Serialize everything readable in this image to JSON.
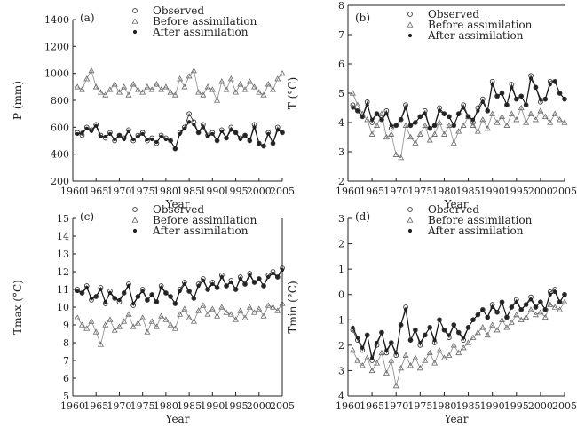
{
  "chart_data": [
    {
      "type": "line",
      "panel_label": "(a)",
      "xlabel": "Year",
      "ylabel": "P (mm)",
      "xlim": [
        1960,
        2005
      ],
      "ylim": [
        200,
        1400
      ],
      "xticks": [
        1960,
        1965,
        1970,
        1975,
        1980,
        1985,
        1990,
        1995,
        2000,
        2005
      ],
      "yticks": [
        200,
        400,
        600,
        800,
        1000,
        1200,
        1400
      ],
      "x": [
        1961,
        1962,
        1963,
        1964,
        1965,
        1966,
        1967,
        1968,
        1969,
        1970,
        1971,
        1972,
        1973,
        1974,
        1975,
        1976,
        1977,
        1978,
        1979,
        1980,
        1981,
        1982,
        1983,
        1984,
        1985,
        1986,
        1987,
        1988,
        1989,
        1990,
        1991,
        1992,
        1993,
        1994,
        1995,
        1996,
        1997,
        1998,
        1999,
        2000,
        2001,
        2002,
        2003,
        2004,
        2005
      ],
      "series": [
        {
          "name": "Observed",
          "marker": "circle",
          "values": [
            560,
            540,
            600,
            580,
            620,
            540,
            520,
            560,
            500,
            540,
            520,
            580,
            500,
            540,
            560,
            500,
            520,
            480,
            540,
            520,
            500,
            440,
            560,
            600,
            700,
            640,
            560,
            620,
            540,
            560,
            500,
            580,
            520,
            600,
            560,
            520,
            540,
            500,
            620,
            480,
            460,
            560,
            480,
            600,
            560
          ]
        },
        {
          "name": "Before assimilation",
          "marker": "triangle",
          "values": [
            900,
            880,
            960,
            1020,
            900,
            860,
            840,
            880,
            920,
            860,
            900,
            840,
            920,
            880,
            860,
            900,
            880,
            920,
            880,
            900,
            860,
            840,
            960,
            900,
            980,
            1020,
            860,
            840,
            900,
            880,
            800,
            940,
            880,
            960,
            860,
            920,
            880,
            940,
            900,
            860,
            840,
            920,
            880,
            960,
            1000
          ]
        },
        {
          "name": "After assimilation",
          "marker": "star",
          "values": [
            550,
            560,
            590,
            570,
            610,
            530,
            530,
            550,
            510,
            540,
            510,
            570,
            510,
            530,
            550,
            510,
            510,
            490,
            530,
            510,
            500,
            440,
            550,
            590,
            640,
            620,
            560,
            600,
            530,
            550,
            500,
            570,
            520,
            580,
            560,
            510,
            540,
            500,
            600,
            480,
            460,
            550,
            480,
            580,
            560
          ]
        }
      ]
    },
    {
      "type": "line",
      "panel_label": "(b)",
      "xlabel": "Year",
      "ylabel": "T (°C)",
      "xlim": [
        1960,
        2005
      ],
      "ylim": [
        2,
        8
      ],
      "xticks": [
        1960,
        1965,
        1970,
        1975,
        1980,
        1985,
        1990,
        1995,
        2000,
        2005
      ],
      "yticks": [
        2,
        3,
        4,
        5,
        6,
        7,
        8
      ],
      "x": [
        1961,
        1962,
        1963,
        1964,
        1965,
        1966,
        1967,
        1968,
        1969,
        1970,
        1971,
        1972,
        1973,
        1974,
        1975,
        1976,
        1977,
        1978,
        1979,
        1980,
        1981,
        1982,
        1983,
        1984,
        1985,
        1986,
        1987,
        1988,
        1989,
        1990,
        1991,
        1992,
        1993,
        1994,
        1995,
        1996,
        1997,
        1998,
        1999,
        2000,
        2001,
        2002,
        2003,
        2004,
        2005
      ],
      "series": [
        {
          "name": "Observed",
          "marker": "circle",
          "values": [
            4.6,
            4.4,
            4.2,
            4.7,
            4.0,
            4.3,
            4.1,
            4.4,
            3.8,
            3.9,
            4.1,
            4.6,
            3.9,
            4.0,
            4.2,
            4.4,
            3.8,
            3.9,
            4.5,
            4.3,
            4.2,
            3.9,
            4.3,
            4.6,
            4.2,
            4.0,
            4.5,
            4.8,
            4.4,
            5.4,
            4.9,
            5.0,
            4.6,
            5.3,
            4.8,
            4.9,
            4.6,
            5.6,
            5.2,
            4.7,
            4.8,
            5.4,
            5.4,
            5.0,
            4.8
          ]
        },
        {
          "name": "Before assimilation",
          "marker": "triangle",
          "values": [
            5.0,
            4.6,
            4.3,
            4.1,
            3.6,
            3.9,
            4.3,
            3.5,
            3.6,
            2.9,
            2.8,
            3.9,
            3.5,
            3.3,
            3.6,
            3.9,
            3.4,
            3.6,
            4.0,
            3.6,
            3.9,
            3.3,
            3.7,
            3.9,
            4.2,
            3.9,
            3.7,
            4.1,
            3.8,
            4.3,
            4.0,
            4.2,
            3.9,
            4.3,
            4.1,
            4.5,
            4.0,
            4.3,
            4.1,
            4.4,
            4.2,
            4.0,
            4.3,
            4.1,
            4.0
          ]
        },
        {
          "name": "After assimilation",
          "marker": "star",
          "values": [
            4.5,
            4.4,
            4.2,
            4.6,
            4.1,
            4.3,
            4.1,
            4.3,
            3.9,
            3.9,
            4.1,
            4.5,
            3.9,
            4.0,
            4.2,
            4.3,
            3.8,
            3.9,
            4.4,
            4.3,
            4.2,
            3.9,
            4.3,
            4.5,
            4.2,
            4.1,
            4.4,
            4.7,
            4.4,
            5.3,
            4.9,
            5.0,
            4.6,
            5.2,
            4.8,
            4.9,
            4.6,
            5.5,
            5.2,
            4.8,
            4.8,
            5.3,
            5.4,
            5.0,
            4.8
          ]
        }
      ]
    },
    {
      "type": "line",
      "panel_label": "(c)",
      "xlabel": "Year",
      "ylabel": "Tmax (°C)",
      "xlim": [
        1960,
        2005
      ],
      "ylim": [
        5,
        15
      ],
      "xticks": [
        1960,
        1965,
        1970,
        1975,
        1980,
        1985,
        1990,
        1995,
        2000,
        2005
      ],
      "yticks": [
        5,
        6,
        7,
        8,
        9,
        10,
        11,
        12,
        13,
        14,
        15
      ],
      "x": [
        1961,
        1962,
        1963,
        1964,
        1965,
        1966,
        1967,
        1968,
        1969,
        1970,
        1971,
        1972,
        1973,
        1974,
        1975,
        1976,
        1977,
        1978,
        1979,
        1980,
        1981,
        1982,
        1983,
        1984,
        1985,
        1986,
        1987,
        1988,
        1989,
        1990,
        1991,
        1992,
        1993,
        1994,
        1995,
        1996,
        1997,
        1998,
        1999,
        2000,
        2001,
        2002,
        2003,
        2004,
        2005
      ],
      "series": [
        {
          "name": "Observed",
          "marker": "circle",
          "values": [
            11.0,
            10.8,
            11.2,
            10.4,
            10.6,
            11.1,
            10.2,
            10.9,
            10.5,
            10.3,
            10.8,
            11.3,
            10.1,
            10.6,
            11.0,
            10.4,
            10.7,
            10.3,
            11.2,
            10.8,
            10.6,
            10.2,
            11.0,
            11.4,
            10.9,
            10.5,
            11.3,
            11.6,
            11.0,
            11.4,
            11.1,
            11.8,
            11.2,
            11.5,
            11.0,
            11.7,
            11.3,
            11.9,
            11.4,
            11.6,
            11.2,
            11.8,
            12.0,
            11.7,
            12.2
          ]
        },
        {
          "name": "Before assimilation",
          "marker": "triangle",
          "values": [
            9.4,
            9.0,
            8.8,
            9.2,
            8.6,
            7.9,
            9.0,
            9.3,
            8.7,
            8.9,
            9.2,
            9.6,
            8.9,
            9.1,
            9.4,
            8.6,
            9.2,
            8.9,
            9.5,
            9.3,
            9.0,
            8.8,
            9.6,
            9.9,
            9.4,
            9.2,
            9.8,
            10.1,
            9.6,
            9.9,
            9.5,
            10.0,
            9.7,
            9.6,
            9.3,
            9.8,
            9.4,
            10.0,
            9.7,
            9.9,
            9.5,
            10.1,
            10.0,
            9.8,
            10.2
          ]
        },
        {
          "name": "After assimilation",
          "marker": "star",
          "values": [
            10.9,
            10.8,
            11.1,
            10.5,
            10.6,
            11.0,
            10.3,
            10.8,
            10.5,
            10.4,
            10.8,
            11.2,
            10.2,
            10.6,
            10.9,
            10.4,
            10.7,
            10.3,
            11.1,
            10.8,
            10.6,
            10.2,
            10.9,
            11.3,
            10.9,
            10.5,
            11.2,
            11.5,
            11.0,
            11.3,
            11.1,
            11.7,
            11.2,
            11.4,
            11.0,
            11.6,
            11.3,
            11.8,
            11.4,
            11.6,
            11.2,
            11.7,
            11.9,
            11.7,
            12.1
          ]
        }
      ]
    },
    {
      "type": "line",
      "panel_label": "(d)",
      "xlabel": "Year",
      "ylabel": "Tmin (°C)",
      "xlim": [
        1960,
        2005
      ],
      "ylim": [
        -4,
        3
      ],
      "xticks": [
        1960,
        1965,
        1970,
        1975,
        1980,
        1985,
        1990,
        1995,
        2000,
        2005
      ],
      "yticks": [
        -4,
        -3,
        -2,
        -1,
        0,
        1,
        2,
        3
      ],
      "ytick_labels": [
        "4",
        "3",
        "2",
        "1",
        "0",
        "1",
        "2",
        "3"
      ],
      "x": [
        1961,
        1962,
        1963,
        1964,
        1965,
        1966,
        1967,
        1968,
        1969,
        1970,
        1971,
        1972,
        1973,
        1974,
        1975,
        1976,
        1977,
        1978,
        1979,
        1980,
        1981,
        1982,
        1983,
        1984,
        1985,
        1986,
        1987,
        1988,
        1989,
        1990,
        1991,
        1992,
        1993,
        1994,
        1995,
        1996,
        1997,
        1998,
        1999,
        2000,
        2001,
        2002,
        2003,
        2004,
        2005
      ],
      "series": [
        {
          "name": "Observed",
          "marker": "circle",
          "values": [
            -1.4,
            -1.8,
            -2.2,
            -1.6,
            -2.6,
            -2.0,
            -1.5,
            -2.3,
            -1.9,
            -2.4,
            -1.2,
            -0.5,
            -1.8,
            -1.4,
            -2.0,
            -1.6,
            -1.3,
            -1.9,
            -1.0,
            -1.4,
            -1.7,
            -1.2,
            -1.5,
            -1.8,
            -1.3,
            -1.0,
            -0.8,
            -0.6,
            -0.9,
            -0.4,
            -0.7,
            -0.3,
            -0.9,
            -0.5,
            -0.2,
            -0.6,
            -0.4,
            -0.1,
            -0.5,
            -0.3,
            -0.6,
            0.1,
            0.2,
            -0.3,
            0.0
          ]
        },
        {
          "name": "Before assimilation",
          "marker": "triangle",
          "values": [
            -2.2,
            -2.6,
            -2.8,
            -2.5,
            -3.0,
            -2.7,
            -2.3,
            -3.1,
            -2.6,
            -3.6,
            -2.9,
            -2.4,
            -2.8,
            -2.5,
            -2.9,
            -2.6,
            -2.3,
            -2.7,
            -2.2,
            -2.5,
            -2.4,
            -2.0,
            -2.3,
            -2.1,
            -1.9,
            -1.7,
            -1.5,
            -1.3,
            -1.6,
            -1.2,
            -1.4,
            -1.0,
            -1.3,
            -1.1,
            -0.8,
            -1.0,
            -0.9,
            -0.6,
            -0.8,
            -0.7,
            -0.9,
            -0.4,
            -0.5,
            -0.6,
            -0.3
          ]
        },
        {
          "name": "After assimilation",
          "marker": "star",
          "values": [
            -1.3,
            -1.7,
            -2.1,
            -1.6,
            -2.5,
            -1.9,
            -1.5,
            -2.2,
            -1.9,
            -2.3,
            -1.2,
            -0.6,
            -1.8,
            -1.4,
            -1.9,
            -1.6,
            -1.3,
            -1.8,
            -1.0,
            -1.4,
            -1.6,
            -1.2,
            -1.5,
            -1.7,
            -1.3,
            -1.0,
            -0.8,
            -0.6,
            -0.9,
            -0.5,
            -0.7,
            -0.3,
            -0.9,
            -0.5,
            -0.3,
            -0.6,
            -0.4,
            -0.2,
            -0.5,
            -0.3,
            -0.6,
            0.0,
            0.1,
            -0.3,
            0.0
          ]
        }
      ]
    }
  ]
}
